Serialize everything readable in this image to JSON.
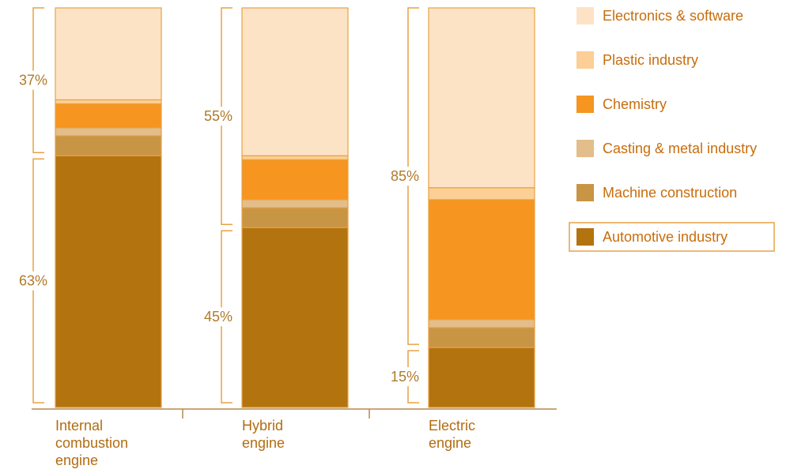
{
  "chart_data": {
    "type": "bar",
    "stacked": true,
    "normalized_percent": true,
    "categories": [
      "Internal combustion engine",
      "Hybrid engine",
      "Electric engine"
    ],
    "category_label_lines": [
      [
        "Internal",
        "combustion",
        "engine"
      ],
      [
        "Hybrid",
        "engine"
      ],
      [
        "Electric",
        "engine"
      ]
    ],
    "series": [
      {
        "name": "Automotive industry",
        "color": "#b3730f",
        "values": [
          63,
          45,
          15
        ]
      },
      {
        "name": "Machine construction",
        "color": "#c89545",
        "values": [
          5,
          5,
          5
        ]
      },
      {
        "name": "Casting & metal industry",
        "color": "#e3bd8a",
        "values": [
          2,
          2,
          2
        ]
      },
      {
        "name": "Chemistry",
        "color": "#f6951f",
        "values": [
          6,
          10,
          30
        ]
      },
      {
        "name": "Plastic industry",
        "color": "#fbcf95",
        "values": [
          1,
          1,
          3
        ]
      },
      {
        "name": "Electronics & software",
        "color": "#fde3c5",
        "values": [
          23,
          37,
          45
        ]
      }
    ],
    "brackets": [
      {
        "upper_label": "37%",
        "lower_label": "63%",
        "split": 63
      },
      {
        "upper_label": "55%",
        "lower_label": "45%",
        "split": 45
      },
      {
        "upper_label": "85%",
        "lower_label": "15%",
        "split": 15
      }
    ],
    "legend_order": [
      "Electronics & software",
      "Plastic industry",
      "Chemistry",
      "Casting & metal industry",
      "Machine construction",
      "Automotive industry"
    ],
    "legend_highlighted": "Automotive industry",
    "legend_position": "right",
    "title": "",
    "xlabel": "",
    "ylabel": "",
    "ylim": [
      0,
      100
    ],
    "grid": false,
    "colors": {
      "outline": "#e8a244",
      "text_percent": "#b07a2a",
      "text_category": "#b26c10",
      "text_legend": "#c96d0b",
      "axis": "#b68a4a"
    }
  }
}
